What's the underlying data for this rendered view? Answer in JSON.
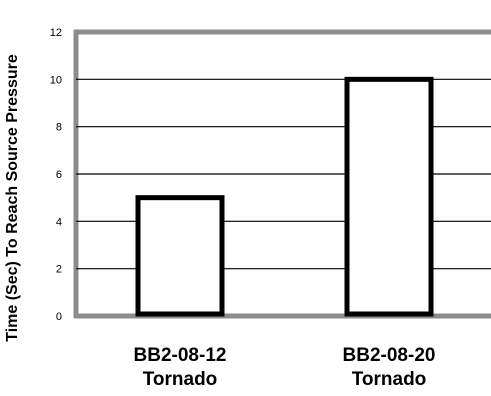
{
  "chart_data": {
    "type": "bar",
    "title": "",
    "xlabel": "",
    "ylabel": "Time (Sec) To Reach Source Pressure",
    "categories": [
      [
        "BB2-08-12",
        "Tornado"
      ],
      [
        "BB2-08-20",
        "Tornado"
      ]
    ],
    "values": [
      5,
      10
    ],
    "ylim": [
      0,
      12
    ],
    "yticks": [
      "0",
      "2",
      "4",
      "6",
      "8",
      "10",
      "12"
    ],
    "grid": true,
    "bar_fill": "#ffffff",
    "bar_stroke": "#000000",
    "frame_color": "#8c8c8c"
  }
}
